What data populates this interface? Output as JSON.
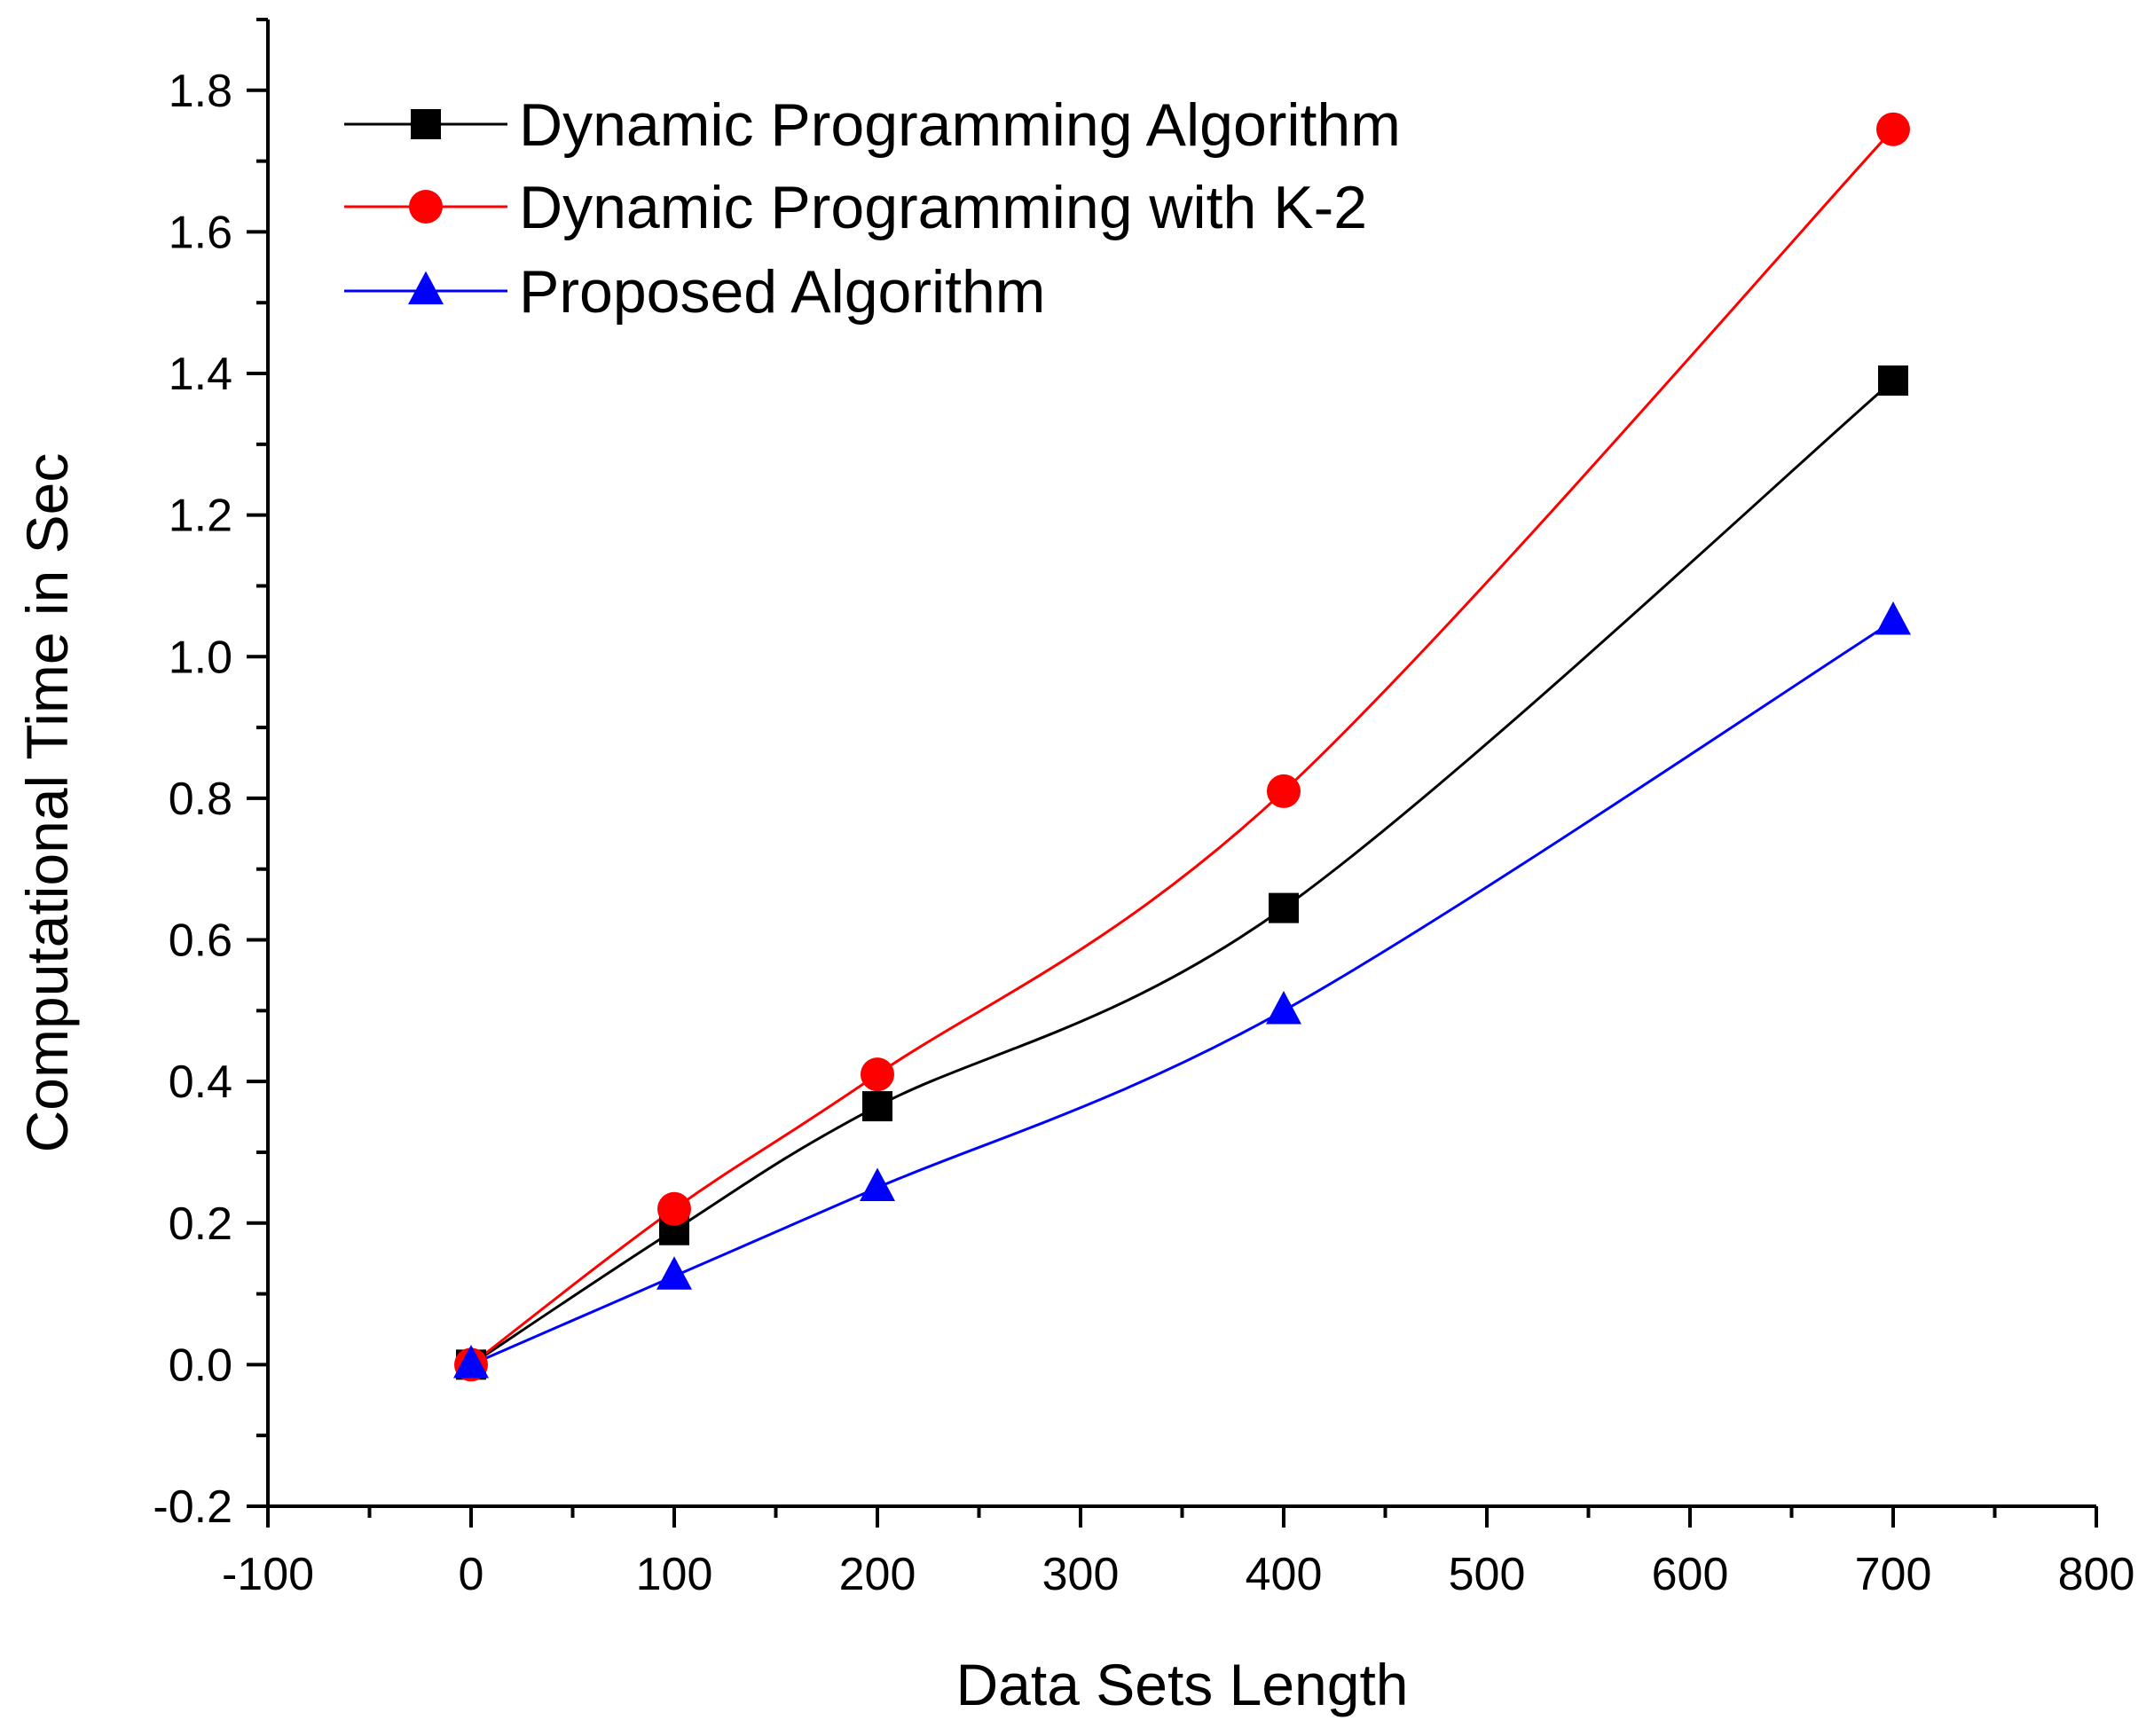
{
  "chart_data": {
    "type": "line",
    "title": "",
    "xlabel": "Data Sets Length",
    "ylabel": "Computational Time in Sec",
    "xlim": [
      -100,
      800
    ],
    "ylim": [
      -0.2,
      1.9
    ],
    "x_ticks": [
      -100,
      0,
      100,
      200,
      300,
      400,
      500,
      600,
      700,
      800
    ],
    "x_tick_labels": [
      "-100",
      "0",
      "100",
      "200",
      "300",
      "400",
      "500",
      "600",
      "700",
      "800"
    ],
    "y_ticks": [
      -0.2,
      0.0,
      0.2,
      0.4,
      0.6,
      0.8,
      1.0,
      1.2,
      1.4,
      1.6,
      1.8
    ],
    "y_tick_labels": [
      "-0.2",
      "0.0",
      "0.2",
      "0.4",
      "0.6",
      "0.8",
      "1.0",
      "1.2",
      "1.4",
      "1.6",
      "1.8"
    ],
    "grid": false,
    "legend_position": "top-left",
    "x": [
      0,
      100,
      200,
      400,
      700
    ],
    "series": [
      {
        "name": "Dynamic Programming Algorithm",
        "values": [
          0.0,
          0.19,
          0.365,
          0.645,
          1.39
        ],
        "color": "#000000",
        "marker": "square"
      },
      {
        "name": "Dynamic Programming with K-2",
        "values": [
          0.0,
          0.22,
          0.41,
          0.81,
          1.745
        ],
        "color": "#ff0000",
        "marker": "circle"
      },
      {
        "name": "Proposed Algorithm",
        "values": [
          0.0,
          0.125,
          0.25,
          0.5,
          1.05
        ],
        "color": "#0000ff",
        "marker": "triangle"
      }
    ]
  }
}
